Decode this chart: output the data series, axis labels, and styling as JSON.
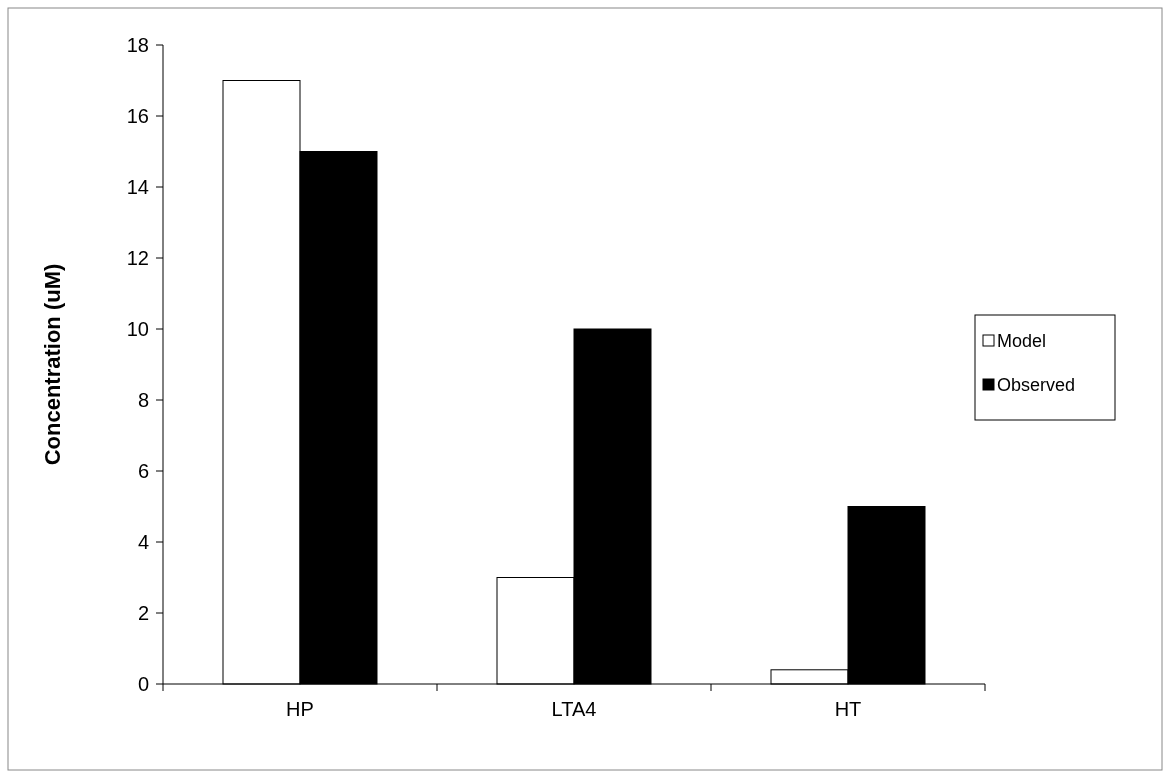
{
  "chart_data": {
    "type": "bar",
    "ylabel": "Concentration (uM)",
    "categories": [
      "HP",
      "LTA4",
      "HT"
    ],
    "series": [
      {
        "name": "Model",
        "color": "#ffffff",
        "values": [
          17,
          3,
          0.4
        ]
      },
      {
        "name": "Observed",
        "color": "#000000",
        "values": [
          15,
          10,
          5
        ]
      }
    ],
    "ylim": [
      0,
      18
    ],
    "yticks": [
      0,
      2,
      4,
      6,
      8,
      10,
      12,
      14,
      16,
      18
    ],
    "grid": false,
    "legend": "right"
  }
}
